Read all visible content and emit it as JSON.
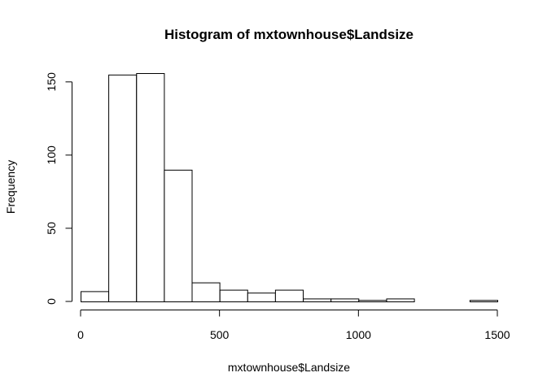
{
  "chart_data": {
    "type": "bar",
    "title": "Histogram of mxtownhouse$Landsize",
    "xlabel": "mxtownhouse$Landsize",
    "ylabel": "Frequency",
    "bin_edges": [
      0,
      100,
      200,
      300,
      400,
      500,
      600,
      700,
      800,
      900,
      1000,
      1100,
      1200,
      1300,
      1400,
      1500
    ],
    "values": [
      7,
      155,
      156,
      90,
      13,
      8,
      6,
      8,
      2,
      2,
      1,
      2,
      0,
      0,
      1
    ],
    "xlim": [
      0,
      1500
    ],
    "ylim": [
      0,
      156
    ],
    "x_ticks": [
      0,
      500,
      1000,
      1500
    ],
    "y_ticks": [
      0,
      50,
      100,
      150
    ],
    "grid": false
  }
}
